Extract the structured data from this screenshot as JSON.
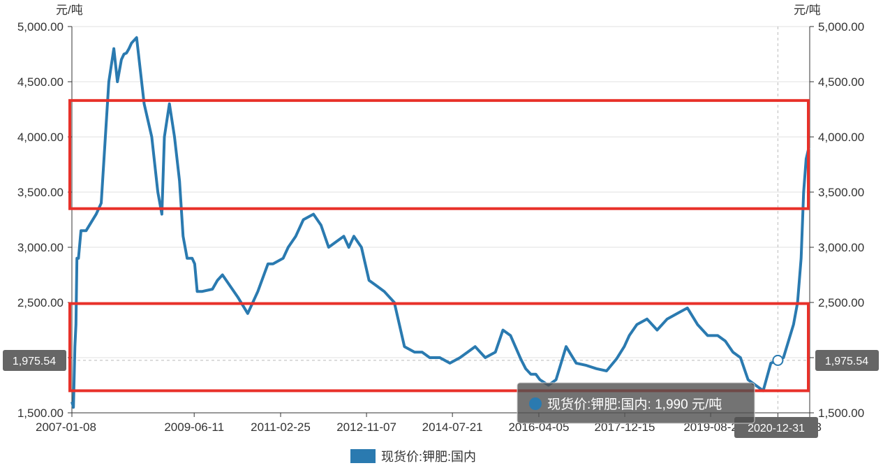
{
  "chart_data": {
    "type": "line",
    "y_unit_left": "元/吨",
    "y_unit_right": "元/吨",
    "ylim": [
      1500,
      5000
    ],
    "yticks": [
      "1,500.00",
      "2,000.00",
      "2,500.00",
      "3,000.00",
      "3,500.00",
      "4,000.00",
      "4,500.00",
      "5,000.00"
    ],
    "ytick_values": [
      1500,
      2000,
      2500,
      3000,
      3500,
      4000,
      4500,
      5000
    ],
    "xticks": [
      "2007-01-08",
      "2009-06-11",
      "2011-02-25",
      "2012-11-07",
      "2014-07-21",
      "2016-04-05",
      "2017-12-15",
      "2019-08-2",
      "2020-12-31",
      "8-13"
    ],
    "xtick_years": [
      2007.02,
      2009.44,
      2011.15,
      2012.85,
      2014.55,
      2016.26,
      2017.96,
      2019.66,
      2020.99,
      2021.62
    ],
    "xlim": [
      2007.02,
      2021.62
    ],
    "grid": true,
    "legend": "bottom-center",
    "series": [
      {
        "name": "现货价:钾肥:国内",
        "color": "#2a7ab0",
        "x": [
          2007.02,
          2007.05,
          2007.08,
          2007.1,
          2007.12,
          2007.15,
          2007.2,
          2007.3,
          2007.5,
          2007.6,
          2007.75,
          2007.85,
          2007.92,
          2008.0,
          2008.05,
          2008.1,
          2008.15,
          2008.2,
          2008.3,
          2008.45,
          2008.6,
          2008.72,
          2008.8,
          2008.85,
          2008.95,
          2009.05,
          2009.15,
          2009.22,
          2009.3,
          2009.35,
          2009.4,
          2009.45,
          2009.5,
          2009.6,
          2009.8,
          2009.9,
          2010.0,
          2010.3,
          2010.5,
          2010.7,
          2010.9,
          2011.0,
          2011.2,
          2011.3,
          2011.45,
          2011.6,
          2011.8,
          2011.95,
          2012.1,
          2012.25,
          2012.4,
          2012.5,
          2012.6,
          2012.75,
          2012.9,
          2013.05,
          2013.2,
          2013.4,
          2013.6,
          2013.8,
          2013.95,
          2014.1,
          2014.3,
          2014.5,
          2014.7,
          2014.85,
          2015.0,
          2015.2,
          2015.4,
          2015.55,
          2015.7,
          2015.9,
          2016.0,
          2016.1,
          2016.2,
          2016.28,
          2016.35,
          2016.45,
          2016.6,
          2016.8,
          2017.0,
          2017.2,
          2017.4,
          2017.6,
          2017.8,
          2017.95,
          2018.05,
          2018.2,
          2018.4,
          2018.6,
          2018.8,
          2019.0,
          2019.2,
          2019.4,
          2019.6,
          2019.8,
          2019.95,
          2020.1,
          2020.25,
          2020.4,
          2020.55,
          2020.7,
          2020.85,
          2020.99,
          2021.1,
          2021.2,
          2021.3,
          2021.38,
          2021.45,
          2021.5,
          2021.55,
          2021.6
        ],
        "values": [
          1600,
          1550,
          2100,
          2300,
          2900,
          2900,
          3150,
          3150,
          3300,
          3400,
          4500,
          4800,
          4500,
          4700,
          4750,
          4760,
          4800,
          4850,
          4900,
          4300,
          4000,
          3500,
          3300,
          4000,
          4300,
          4000,
          3600,
          3100,
          2900,
          2900,
          2900,
          2850,
          2600,
          2600,
          2620,
          2700,
          2750,
          2550,
          2400,
          2600,
          2850,
          2850,
          2900,
          3000,
          3100,
          3250,
          3300,
          3200,
          3000,
          3050,
          3100,
          3000,
          3100,
          3000,
          2700,
          2650,
          2600,
          2500,
          2100,
          2050,
          2050,
          2000,
          2000,
          1950,
          2000,
          2050,
          2100,
          2000,
          2050,
          2250,
          2200,
          1990,
          1900,
          1850,
          1850,
          1800,
          1780,
          1750,
          1800,
          2100,
          1950,
          1930,
          1900,
          1880,
          1990,
          2100,
          2200,
          2300,
          2350,
          2250,
          2350,
          2400,
          2450,
          2300,
          2200,
          2200,
          2150,
          2050,
          2000,
          1800,
          1750,
          1700,
          1950,
          1975.54,
          2000,
          2150,
          2300,
          2500,
          2900,
          3500,
          3800,
          3900
        ]
      }
    ],
    "axis_pointer": {
      "date": "2020-12-31",
      "value_label": "1,975.54"
    },
    "tooltip": {
      "series_name": "现货价:钾肥:国内",
      "value": "1,990",
      "unit": "元/吨",
      "text": "现货价:钾肥:国内: 1,990 元/吨"
    },
    "annotations": [
      {
        "type": "rectangle",
        "color": "#e8312a",
        "y_range": [
          3350,
          4330
        ]
      },
      {
        "type": "rectangle",
        "color": "#e8312a",
        "y_range": [
          1700,
          2490
        ]
      }
    ]
  }
}
